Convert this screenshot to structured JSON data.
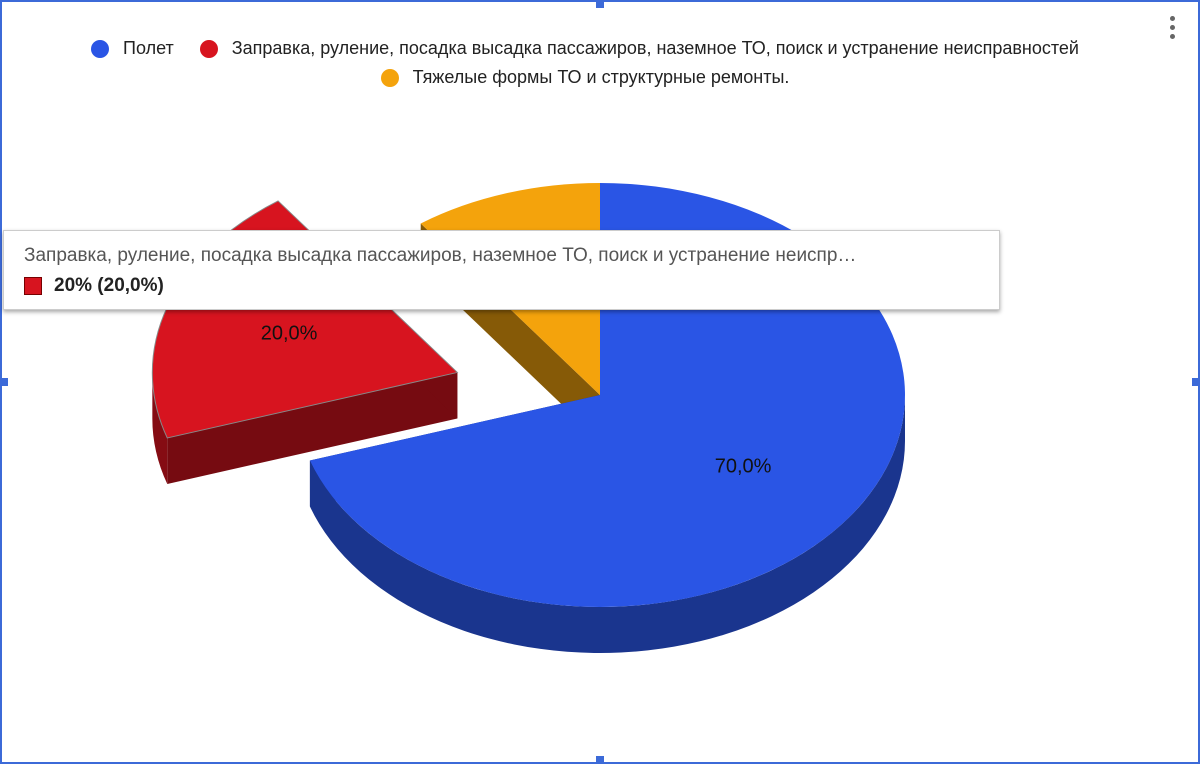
{
  "chart_data": {
    "type": "pie",
    "style": "3d",
    "categories": [
      "Полет",
      "Заправка, руление, посадка высадка пассажиров, наземное ТО, поиск и устранение неисправностей",
      "Тяжелые формы ТО и структурные ремонты."
    ],
    "values": [
      70,
      20,
      10
    ],
    "value_labels": [
      "70,0%",
      "20,0%",
      null
    ],
    "colors": [
      "#2a55e5",
      "#d7141f",
      "#f4a30c"
    ],
    "exploded": [
      false,
      true,
      false
    ],
    "legend": "top",
    "tooltip": {
      "title": "Заправка, руление, посадка высадка пассажиров, наземное ТО, поиск и устранение неиспр…",
      "text": "20% (20,0%)",
      "color": "#d7141f"
    }
  }
}
